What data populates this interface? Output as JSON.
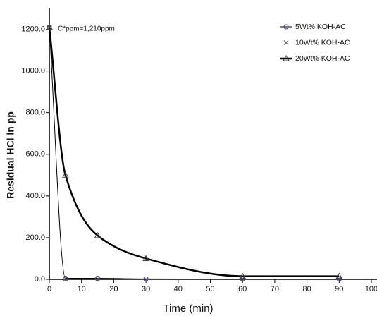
{
  "chart_data": {
    "type": "line",
    "xlabel": "Time (min)",
    "ylabel": "Residual HCl in pp",
    "annotation": "C*ppm=1,210ppm",
    "x": [
      0,
      5,
      15,
      30,
      60,
      90
    ],
    "series": [
      {
        "name": "5Wt% KOH-AC",
        "color": "#3a3a9a",
        "marker": "circle",
        "line_width": 1,
        "values": [
          1210,
          5,
          5,
          2,
          1,
          1
        ]
      },
      {
        "name": "10Wt% KOH-AC",
        "color": "#555555",
        "marker": "x",
        "line_width": 0,
        "values": [
          1210,
          3,
          2,
          1,
          1,
          1
        ]
      },
      {
        "name": "20Wt% KOH-AC",
        "color": "#444444",
        "marker": "triangle",
        "line_width": 2.5,
        "values": [
          1210,
          500,
          210,
          100,
          15,
          15
        ]
      }
    ],
    "xlim": [
      0,
      100
    ],
    "xticks": [
      0,
      10,
      20,
      30,
      40,
      50,
      60,
      70,
      80,
      90,
      100
    ],
    "ylim": [
      0,
      1300
    ],
    "yticks": [
      {
        "value": 0,
        "label": "0.0"
      },
      {
        "value": 200,
        "label": "200.0"
      },
      {
        "value": 400,
        "label": "400.0"
      },
      {
        "value": 600,
        "label": "600.0"
      },
      {
        "value": 800,
        "label": "800.0"
      },
      {
        "value": 1000,
        "label": "1000.0"
      },
      {
        "value": 1200,
        "label": "1200.0"
      }
    ],
    "grid": false,
    "legend": "top-right"
  }
}
